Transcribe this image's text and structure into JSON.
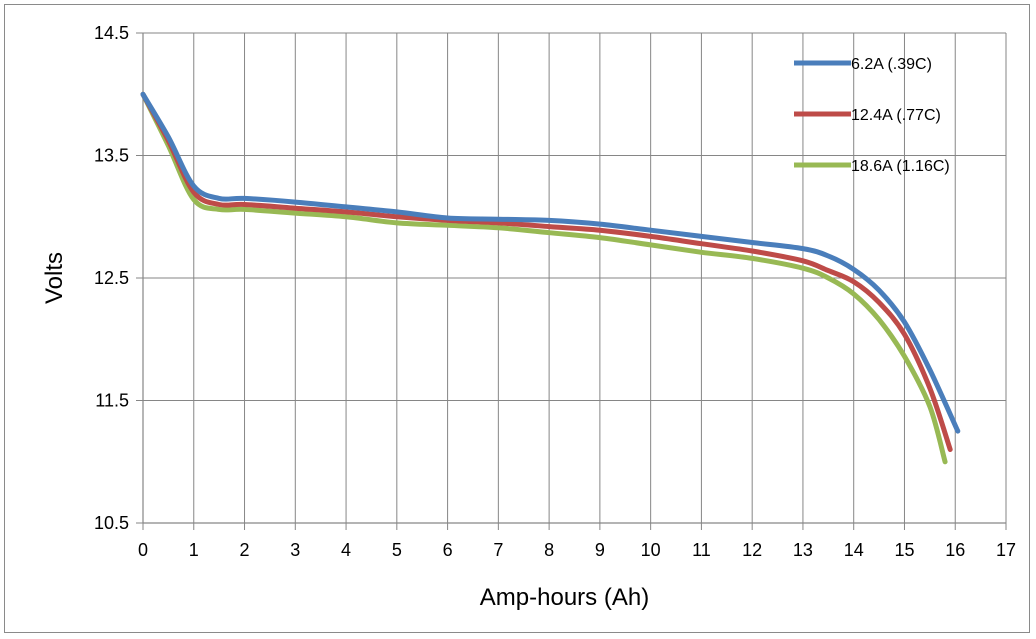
{
  "chart_data": {
    "type": "line",
    "xlabel": "Amp-hours (Ah)",
    "ylabel": "Volts",
    "xlim": [
      0,
      17
    ],
    "ylim": [
      10.5,
      14.5
    ],
    "x_ticks": [
      0,
      1,
      2,
      3,
      4,
      5,
      6,
      7,
      8,
      9,
      10,
      11,
      12,
      13,
      14,
      15,
      16,
      17
    ],
    "y_ticks": [
      10.5,
      11.5,
      12.5,
      13.5,
      14.5
    ],
    "y_tick_labels": [
      "10.5",
      "11.5",
      "12.5",
      "13.5",
      "14.5"
    ],
    "grid": true,
    "legend_position": "top-right",
    "series": [
      {
        "name": "6.2A (.39C)",
        "color": "#4a7ebb",
        "points": [
          [
            0,
            14.0
          ],
          [
            0.5,
            13.65
          ],
          [
            1,
            13.25
          ],
          [
            1.5,
            13.15
          ],
          [
            2,
            13.15
          ],
          [
            3,
            13.12
          ],
          [
            4,
            13.08
          ],
          [
            5,
            13.04
          ],
          [
            6,
            12.99
          ],
          [
            7,
            12.98
          ],
          [
            8,
            12.97
          ],
          [
            9,
            12.94
          ],
          [
            10,
            12.89
          ],
          [
            11,
            12.84
          ],
          [
            12,
            12.79
          ],
          [
            13,
            12.74
          ],
          [
            13.5,
            12.68
          ],
          [
            14,
            12.57
          ],
          [
            14.5,
            12.4
          ],
          [
            15,
            12.14
          ],
          [
            15.5,
            11.75
          ],
          [
            16.05,
            11.25
          ]
        ]
      },
      {
        "name": "12.4A (.77C)",
        "color": "#be4b48",
        "points": [
          [
            0,
            14.0
          ],
          [
            0.5,
            13.62
          ],
          [
            1,
            13.2
          ],
          [
            1.5,
            13.1
          ],
          [
            2,
            13.1
          ],
          [
            3,
            13.07
          ],
          [
            4,
            13.04
          ],
          [
            5,
            13.0
          ],
          [
            6,
            12.97
          ],
          [
            7,
            12.95
          ],
          [
            8,
            12.92
          ],
          [
            9,
            12.89
          ],
          [
            10,
            12.84
          ],
          [
            11,
            12.78
          ],
          [
            12,
            12.72
          ],
          [
            13,
            12.64
          ],
          [
            13.5,
            12.56
          ],
          [
            14,
            12.47
          ],
          [
            14.5,
            12.3
          ],
          [
            15,
            12.04
          ],
          [
            15.5,
            11.6
          ],
          [
            15.9,
            11.1
          ]
        ]
      },
      {
        "name": "18.6A (1.16C)",
        "color": "#98b954",
        "points": [
          [
            0,
            14.0
          ],
          [
            0.5,
            13.58
          ],
          [
            1,
            13.14
          ],
          [
            1.5,
            13.06
          ],
          [
            2,
            13.06
          ],
          [
            3,
            13.03
          ],
          [
            4,
            13.0
          ],
          [
            5,
            12.95
          ],
          [
            6,
            12.93
          ],
          [
            7,
            12.91
          ],
          [
            8,
            12.87
          ],
          [
            9,
            12.83
          ],
          [
            10,
            12.77
          ],
          [
            11,
            12.71
          ],
          [
            12,
            12.66
          ],
          [
            13,
            12.58
          ],
          [
            13.5,
            12.5
          ],
          [
            14,
            12.37
          ],
          [
            14.5,
            12.16
          ],
          [
            15,
            11.86
          ],
          [
            15.5,
            11.45
          ],
          [
            15.8,
            11.0
          ]
        ]
      }
    ]
  }
}
